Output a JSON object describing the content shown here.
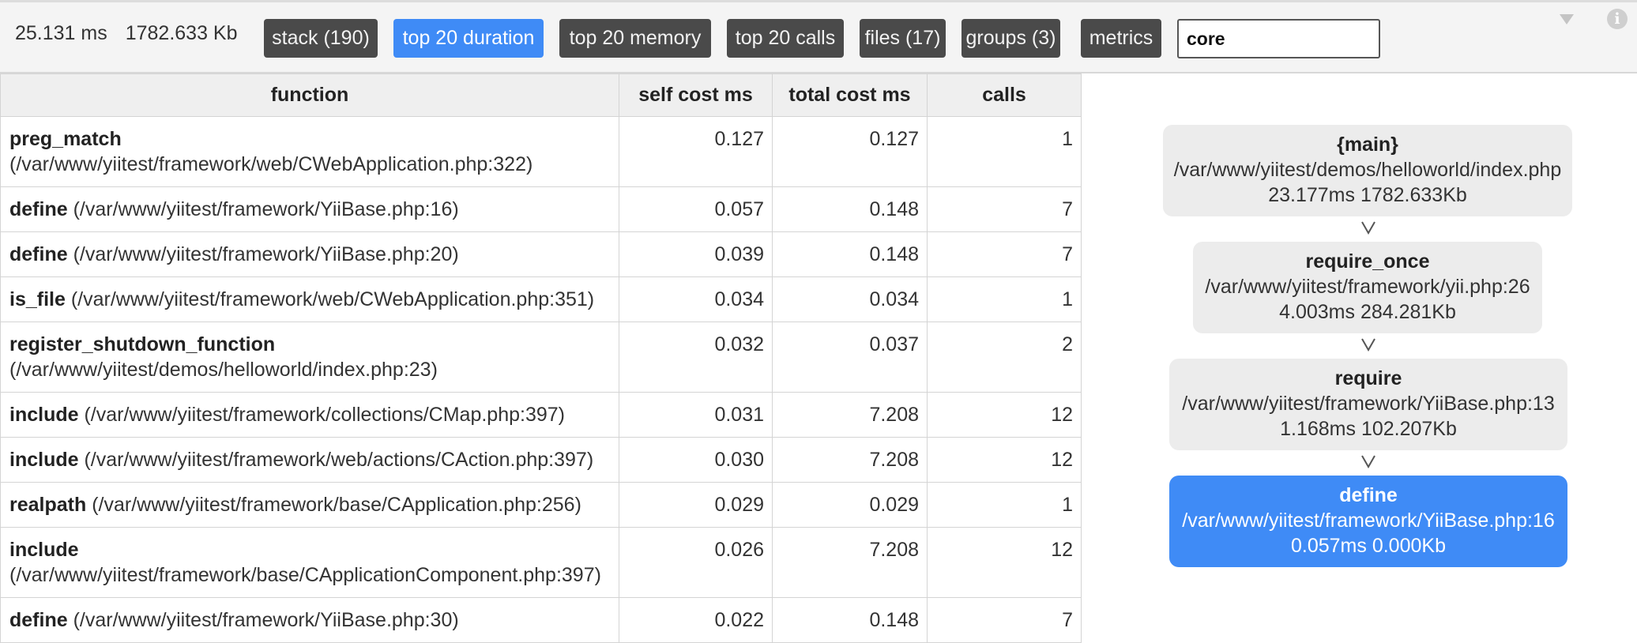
{
  "summary": {
    "duration": "25.131 ms",
    "memory": "1782.633 Kb"
  },
  "toolbar": {
    "stack": "stack (190)",
    "top_duration": "top 20 duration",
    "top_memory": "top 20 memory",
    "top_calls": "top 20 calls",
    "files": "files (17)",
    "groups": "groups (3)",
    "metrics": "metrics"
  },
  "search": {
    "value": "core"
  },
  "icons": {
    "collapse": "chevron-down-icon",
    "info": "info-icon"
  },
  "colors": {
    "accent": "#3f8bf6",
    "button": "#4a4a4a"
  },
  "table": {
    "headers": [
      "function",
      "self cost ms",
      "total cost ms",
      "calls"
    ],
    "rows": [
      {
        "name": "preg_match",
        "loc": "(/var/www/yiitest/framework/web/CWebApplication.php:322)",
        "self": "0.127",
        "total": "0.127",
        "calls": "1"
      },
      {
        "name": "define",
        "loc": "(/var/www/yiitest/framework/YiiBase.php:16)",
        "self": "0.057",
        "total": "0.148",
        "calls": "7"
      },
      {
        "name": "define",
        "loc": "(/var/www/yiitest/framework/YiiBase.php:20)",
        "self": "0.039",
        "total": "0.148",
        "calls": "7"
      },
      {
        "name": "is_file",
        "loc": "(/var/www/yiitest/framework/web/CWebApplication.php:351)",
        "self": "0.034",
        "total": "0.034",
        "calls": "1"
      },
      {
        "name": "register_shutdown_function",
        "loc": "(/var/www/yiitest/demos/helloworld/index.php:23)",
        "self": "0.032",
        "total": "0.037",
        "calls": "2"
      },
      {
        "name": "include",
        "loc": "(/var/www/yiitest/framework/collections/CMap.php:397)",
        "self": "0.031",
        "total": "7.208",
        "calls": "12"
      },
      {
        "name": "include",
        "loc": "(/var/www/yiitest/framework/web/actions/CAction.php:397)",
        "self": "0.030",
        "total": "7.208",
        "calls": "12"
      },
      {
        "name": "realpath",
        "loc": "(/var/www/yiitest/framework/base/CApplication.php:256)",
        "self": "0.029",
        "total": "0.029",
        "calls": "1"
      },
      {
        "name": "include",
        "loc": "(/var/www/yiitest/framework/base/CApplicationComponent.php:397)",
        "self": "0.026",
        "total": "7.208",
        "calls": "12"
      },
      {
        "name": "define",
        "loc": "(/var/www/yiitest/framework/YiiBase.php:30)",
        "self": "0.022",
        "total": "0.148",
        "calls": "7"
      }
    ]
  },
  "callgraph": {
    "nodes": [
      {
        "name": "{main}",
        "file": "/var/www/yiitest/demos/helloworld/index.php",
        "stats": "23.177ms 1782.633Kb"
      },
      {
        "name": "require_once",
        "file": "/var/www/yiitest/framework/yii.php:26",
        "stats": "4.003ms 284.281Kb"
      },
      {
        "name": "require",
        "file": "/var/www/yiitest/framework/YiiBase.php:13",
        "stats": "1.168ms 102.207Kb"
      },
      {
        "name": "define",
        "file": "/var/www/yiitest/framework/YiiBase.php:16",
        "stats": "0.057ms 0.000Kb"
      }
    ]
  }
}
